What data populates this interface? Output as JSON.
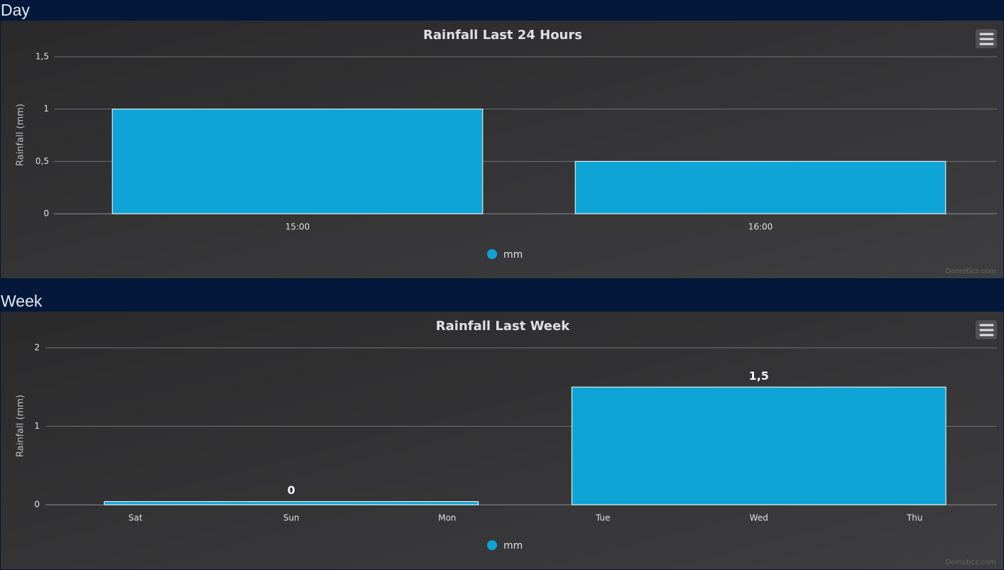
{
  "sections": [
    "Day",
    "Week"
  ],
  "chart_data": [
    {
      "type": "bar",
      "title": "Rainfall Last 24 Hours",
      "ylabel": "Rainfall (mm)",
      "categories": [
        "15:00",
        "16:00"
      ],
      "series": [
        {
          "name": "mm",
          "color": "#0ea5d6",
          "values": [
            1,
            0.5
          ]
        }
      ],
      "ylim": [
        0,
        1.5
      ],
      "yticks": [
        0,
        {
          "value": 0.5,
          "label": "0,5"
        },
        1,
        {
          "value": 1.5,
          "label": "1,5"
        }
      ],
      "grid": true,
      "legend": "bottom",
      "credit": "Domoticz.com"
    },
    {
      "type": "bar",
      "title": "Rainfall Last Week",
      "ylabel": "Rainfall (mm)",
      "categories": [
        "Sat",
        "Sun",
        "Mon",
        "Tue",
        "Wed",
        "Thu"
      ],
      "series": [
        {
          "name": "mm",
          "color": "#0ea5d6",
          "values": [
            null,
            0.04,
            null,
            null,
            1.5,
            null
          ],
          "value_labels": [
            null,
            "0",
            null,
            null,
            "1,5",
            null
          ]
        }
      ],
      "ylim": [
        0,
        2
      ],
      "yticks": [
        0,
        1,
        2
      ],
      "grid": true,
      "legend": "bottom",
      "credit": "Domoticz.com"
    }
  ]
}
